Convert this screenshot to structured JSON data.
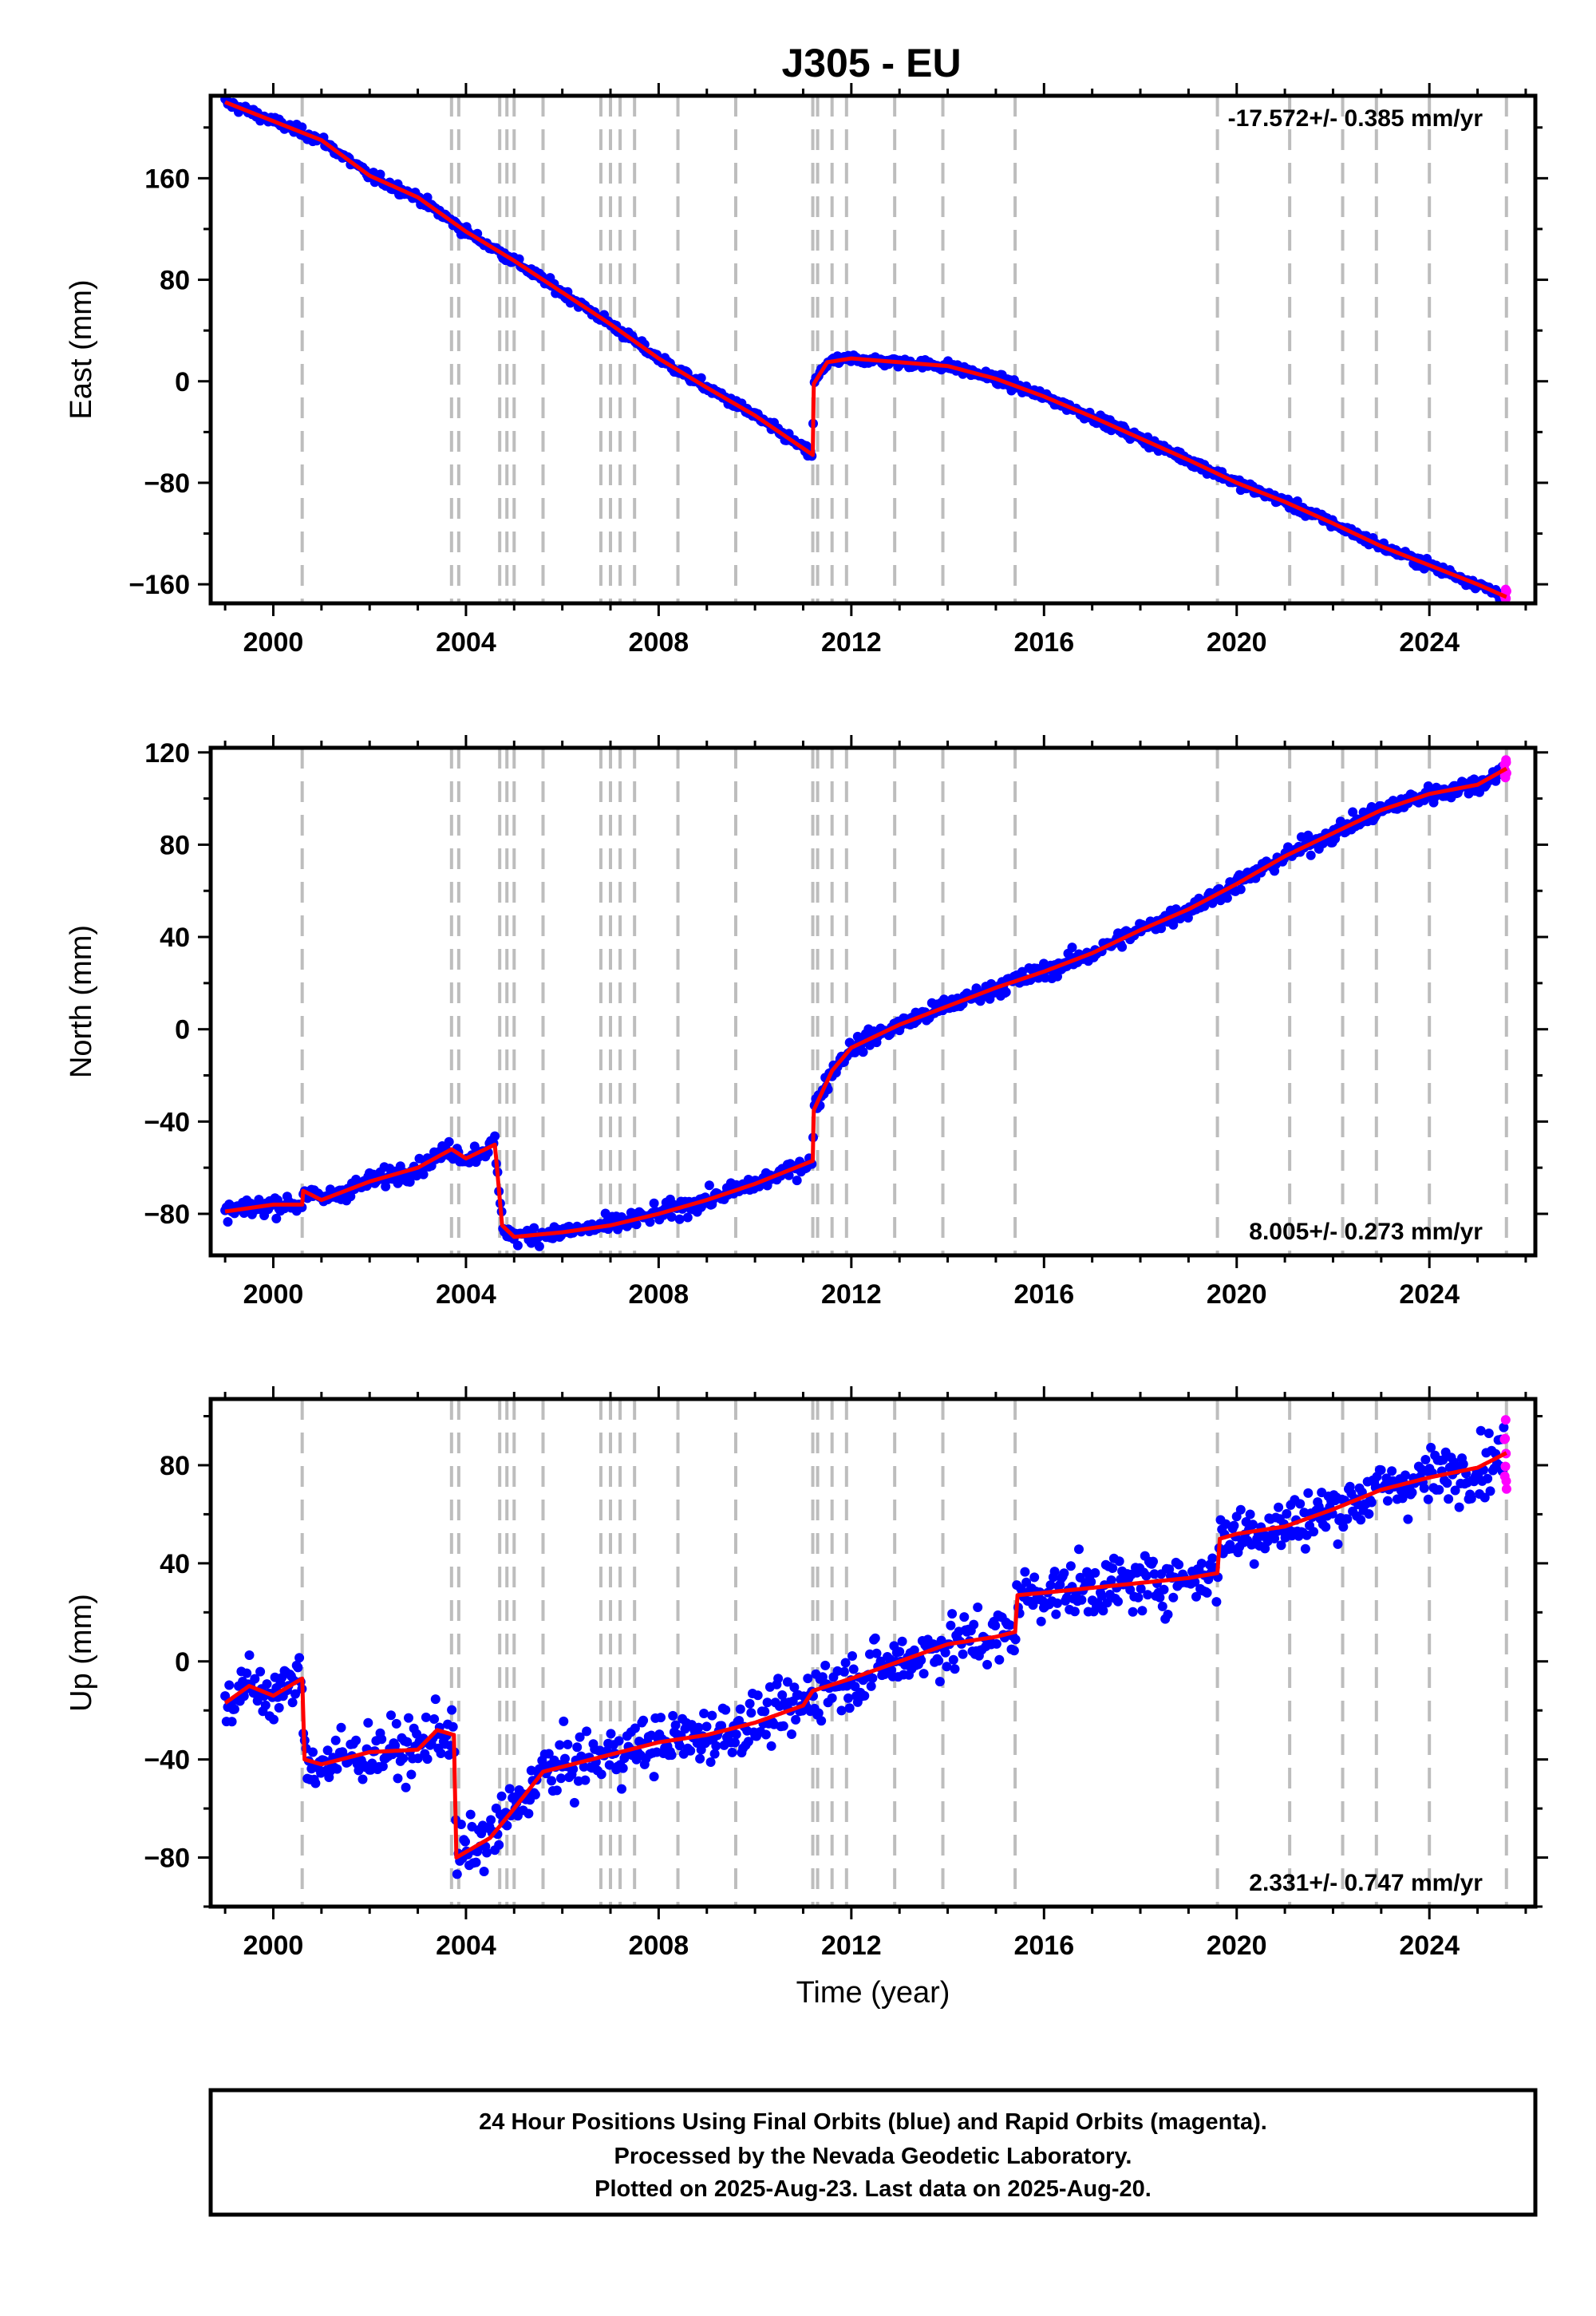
{
  "title": "J305 - EU",
  "caption": {
    "line1": "24 Hour Positions Using Final Orbits (blue) and Rapid Orbits (magenta).",
    "line2": "Processed by the Nevada Geodetic Laboratory.",
    "line3": "Plotted on 2025-Aug-23. Last data on 2025-Aug-20."
  },
  "chart_data": [
    {
      "type": "scatter",
      "panel": "east",
      "ylabel": "East (mm)",
      "xlabel": "",
      "xlim": [
        1998.7,
        2026.2
      ],
      "ylim": [
        -175,
        225
      ],
      "xticks": [
        2000,
        2004,
        2008,
        2012,
        2016,
        2020,
        2024
      ],
      "yticks": [
        -160,
        -80,
        0,
        80,
        160
      ],
      "rate_text": "-17.572+/- 0.385 mm/yr",
      "rate_position": "top-right",
      "equipment_changes": [
        2000.6,
        2003.7,
        2003.85,
        2004.7,
        2004.85,
        2005.0,
        2005.6,
        2006.8,
        2007.0,
        2007.2,
        2007.5,
        2008.4,
        2009.6,
        2011.2,
        2011.3,
        2011.6,
        2011.9,
        2012.9,
        2013.9,
        2015.4,
        2019.6,
        2021.1,
        2022.2,
        2022.9,
        2024.0,
        2025.6
      ],
      "model_knots": [
        [
          1999.0,
          220
        ],
        [
          2000.0,
          205
        ],
        [
          2001.0,
          190
        ],
        [
          2002.0,
          162
        ],
        [
          2003.0,
          145
        ],
        [
          2004.0,
          118
        ],
        [
          2005.0,
          95
        ],
        [
          2006.0,
          70
        ],
        [
          2007.0,
          45
        ],
        [
          2008.0,
          18
        ],
        [
          2009.0,
          -5
        ],
        [
          2010.0,
          -27
        ],
        [
          2011.2,
          -58
        ],
        [
          2011.22,
          -2
        ],
        [
          2011.5,
          15
        ],
        [
          2012.0,
          18
        ],
        [
          2013.0,
          15
        ],
        [
          2014.0,
          12
        ],
        [
          2015.0,
          2
        ],
        [
          2016.0,
          -12
        ],
        [
          2017.0,
          -28
        ],
        [
          2018.0,
          -45
        ],
        [
          2019.0,
          -62
        ],
        [
          2020.0,
          -80
        ],
        [
          2021.0,
          -95
        ],
        [
          2022.0,
          -112
        ],
        [
          2023.0,
          -130
        ],
        [
          2024.0,
          -145
        ],
        [
          2025.0,
          -160
        ],
        [
          2025.6,
          -170
        ]
      ],
      "scatter_sigma": 3,
      "series": [
        {
          "name": "Final Orbits",
          "color": "#0000ff"
        },
        {
          "name": "Rapid Orbits",
          "color": "#ff00ff"
        },
        {
          "name": "model",
          "color": "#ff0000"
        }
      ]
    },
    {
      "type": "scatter",
      "panel": "north",
      "ylabel": "North (mm)",
      "xlabel": "",
      "xlim": [
        1998.7,
        2026.2
      ],
      "ylim": [
        -98,
        122
      ],
      "xticks": [
        2000,
        2004,
        2008,
        2012,
        2016,
        2020,
        2024
      ],
      "yticks": [
        -80,
        -40,
        0,
        40,
        80,
        120
      ],
      "rate_text": "8.005+/- 0.273 mm/yr",
      "rate_position": "bottom-right",
      "equipment_changes": [
        2000.6,
        2003.7,
        2003.85,
        2004.7,
        2004.85,
        2005.0,
        2005.6,
        2006.8,
        2007.0,
        2007.2,
        2007.5,
        2008.4,
        2009.6,
        2011.2,
        2011.3,
        2011.6,
        2011.9,
        2012.9,
        2013.9,
        2015.4,
        2019.6,
        2021.1,
        2022.2,
        2022.9,
        2024.0,
        2025.6
      ],
      "model_knots": [
        [
          1999.0,
          -79
        ],
        [
          2000.0,
          -76
        ],
        [
          2000.6,
          -76
        ],
        [
          2000.62,
          -70
        ],
        [
          2001.0,
          -74
        ],
        [
          2002.0,
          -66
        ],
        [
          2003.0,
          -60
        ],
        [
          2003.7,
          -52
        ],
        [
          2004.0,
          -56
        ],
        [
          2004.6,
          -50
        ],
        [
          2004.75,
          -85
        ],
        [
          2005.0,
          -90
        ],
        [
          2006.0,
          -88
        ],
        [
          2007.0,
          -85
        ],
        [
          2008.0,
          -80
        ],
        [
          2009.0,
          -74
        ],
        [
          2010.0,
          -67
        ],
        [
          2011.2,
          -57
        ],
        [
          2011.22,
          -35
        ],
        [
          2011.6,
          -18
        ],
        [
          2012.0,
          -8
        ],
        [
          2013.0,
          2
        ],
        [
          2014.0,
          10
        ],
        [
          2015.0,
          18
        ],
        [
          2016.0,
          25
        ],
        [
          2017.0,
          33
        ],
        [
          2018.0,
          43
        ],
        [
          2019.0,
          52
        ],
        [
          2020.0,
          63
        ],
        [
          2021.0,
          75
        ],
        [
          2022.0,
          85
        ],
        [
          2023.0,
          95
        ],
        [
          2024.0,
          102
        ],
        [
          2025.0,
          106
        ],
        [
          2025.6,
          113
        ]
      ],
      "scatter_sigma": 3,
      "series": [
        {
          "name": "Final Orbits",
          "color": "#0000ff"
        },
        {
          "name": "Rapid Orbits",
          "color": "#ff00ff"
        },
        {
          "name": "model",
          "color": "#ff0000"
        }
      ]
    },
    {
      "type": "scatter",
      "panel": "up",
      "ylabel": "Up (mm)",
      "xlabel": "Time (year)",
      "xlim": [
        1998.7,
        2026.2
      ],
      "ylim": [
        -100,
        107
      ],
      "xticks": [
        2000,
        2004,
        2008,
        2012,
        2016,
        2020,
        2024
      ],
      "yticks": [
        -80,
        -40,
        0,
        40,
        80
      ],
      "rate_text": "2.331+/- 0.747 mm/yr",
      "rate_position": "bottom-right",
      "equipment_changes": [
        2000.6,
        2003.7,
        2003.85,
        2004.7,
        2004.85,
        2005.0,
        2005.6,
        2006.8,
        2007.0,
        2007.2,
        2007.5,
        2008.4,
        2009.6,
        2011.2,
        2011.3,
        2011.6,
        2011.9,
        2012.9,
        2013.9,
        2015.4,
        2019.6,
        2021.1,
        2022.2,
        2022.9,
        2024.0,
        2025.6
      ],
      "model_knots": [
        [
          1999.0,
          -17
        ],
        [
          1999.5,
          -10
        ],
        [
          2000.0,
          -14
        ],
        [
          2000.6,
          -7
        ],
        [
          2000.65,
          -40
        ],
        [
          2001.0,
          -42
        ],
        [
          2002.0,
          -37
        ],
        [
          2003.0,
          -36
        ],
        [
          2003.4,
          -28
        ],
        [
          2003.75,
          -30
        ],
        [
          2003.8,
          -80
        ],
        [
          2004.5,
          -72
        ],
        [
          2005.0,
          -60
        ],
        [
          2005.6,
          -45
        ],
        [
          2006.0,
          -43
        ],
        [
          2007.0,
          -38
        ],
        [
          2008.0,
          -33
        ],
        [
          2009.0,
          -30
        ],
        [
          2010.0,
          -25
        ],
        [
          2011.0,
          -18
        ],
        [
          2011.2,
          -12
        ],
        [
          2012.0,
          -7
        ],
        [
          2013.0,
          0
        ],
        [
          2014.0,
          7
        ],
        [
          2015.0,
          10
        ],
        [
          2015.4,
          12
        ],
        [
          2015.45,
          27
        ],
        [
          2016.0,
          28
        ],
        [
          2017.0,
          30
        ],
        [
          2018.0,
          32
        ],
        [
          2019.0,
          34
        ],
        [
          2019.6,
          36
        ],
        [
          2019.65,
          50
        ],
        [
          2020.0,
          52
        ],
        [
          2021.0,
          55
        ],
        [
          2022.0,
          62
        ],
        [
          2023.0,
          70
        ],
        [
          2024.0,
          75
        ],
        [
          2025.0,
          79
        ],
        [
          2025.6,
          85
        ]
      ],
      "scatter_sigma": 9,
      "series": [
        {
          "name": "Final Orbits",
          "color": "#0000ff"
        },
        {
          "name": "Rapid Orbits",
          "color": "#ff00ff"
        },
        {
          "name": "model",
          "color": "#ff0000"
        }
      ]
    }
  ]
}
